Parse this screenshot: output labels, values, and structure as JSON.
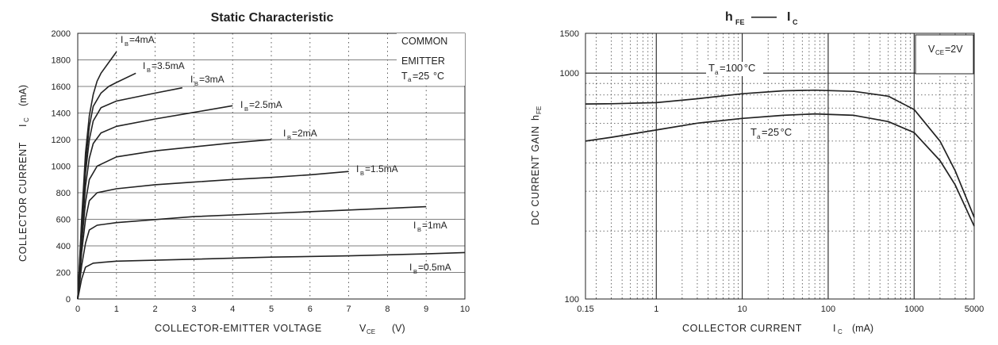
{
  "chart_data": [
    {
      "type": "line",
      "title": "Static Characteristic",
      "xlabel": "COLLECTOR-EMITTER VOLTAGE",
      "xlabel_symbol": "V",
      "xlabel_sub": "CE",
      "xlabel_unit": "(V)",
      "ylabel": "COLLECTOR CURRENT",
      "ylabel_symbol": "I",
      "ylabel_sub": "C",
      "ylabel_unit": "(mA)",
      "xlim": [
        0,
        10
      ],
      "ylim": [
        0,
        2000
      ],
      "xticks": [
        "0",
        "1",
        "2",
        "3",
        "4",
        "5",
        "6",
        "7",
        "8",
        "9",
        "10"
      ],
      "yticks": [
        "0",
        "200",
        "400",
        "600",
        "800",
        "1000",
        "1200",
        "1400",
        "1600",
        "1800",
        "2000"
      ],
      "grid": true,
      "annotations": [
        "COMMON",
        "EMITTER",
        "T",
        "a",
        "=25",
        "°C"
      ],
      "series": [
        {
          "name": "IB=0.5mA",
          "label_main": "I",
          "label_sub": "B",
          "label_rest": "=0.5mA",
          "x": [
            0,
            0.1,
            0.2,
            0.4,
            1,
            3,
            5,
            7,
            9,
            10
          ],
          "y": [
            0,
            150,
            240,
            270,
            285,
            300,
            315,
            325,
            340,
            350
          ]
        },
        {
          "name": "IB=1mA",
          "label_main": "I",
          "label_sub": "B",
          "label_rest": "=1mA",
          "x": [
            0,
            0.1,
            0.2,
            0.3,
            0.5,
            1,
            3,
            5,
            7,
            9
          ],
          "y": [
            0,
            250,
            420,
            520,
            555,
            575,
            620,
            645,
            670,
            695
          ]
        },
        {
          "name": "IB=1.5mA",
          "label_main": "I",
          "label_sub": "B",
          "label_rest": "=1.5mA",
          "x": [
            0,
            0.1,
            0.2,
            0.3,
            0.5,
            1,
            2,
            3,
            4,
            5,
            6,
            7
          ],
          "y": [
            0,
            350,
            600,
            740,
            800,
            830,
            860,
            880,
            900,
            915,
            935,
            960
          ]
        },
        {
          "name": "IB=2mA",
          "label_main": "I",
          "label_sub": "B",
          "label_rest": "=2mA",
          "x": [
            0,
            0.1,
            0.2,
            0.3,
            0.5,
            1,
            2,
            3,
            4,
            5
          ],
          "y": [
            0,
            420,
            730,
            900,
            1000,
            1070,
            1115,
            1145,
            1175,
            1200
          ]
        },
        {
          "name": "IB=2.5mA",
          "label_main": "I",
          "label_sub": "B",
          "label_rest": "=2.5mA",
          "x": [
            0,
            0.1,
            0.2,
            0.3,
            0.4,
            0.6,
            1,
            2,
            3,
            4
          ],
          "y": [
            0,
            480,
            850,
            1060,
            1170,
            1250,
            1300,
            1355,
            1405,
            1455
          ]
        },
        {
          "name": "IB=3mA",
          "label_main": "I",
          "label_sub": "B",
          "label_rest": "=3mA",
          "x": [
            0,
            0.1,
            0.2,
            0.3,
            0.4,
            0.6,
            1,
            1.5,
            2,
            2.7
          ],
          "y": [
            0,
            520,
            950,
            1200,
            1340,
            1440,
            1490,
            1520,
            1550,
            1590
          ]
        },
        {
          "name": "IB=3.5mA",
          "label_main": "I",
          "label_sub": "B",
          "label_rest": "=3.5mA",
          "x": [
            0,
            0.1,
            0.2,
            0.3,
            0.4,
            0.6,
            0.8,
            1,
            1.5
          ],
          "y": [
            0,
            560,
            1020,
            1300,
            1450,
            1550,
            1600,
            1630,
            1700
          ]
        },
        {
          "name": "IB=4mA",
          "label_main": "I",
          "label_sub": "B",
          "label_rest": "=4mA",
          "x": [
            0,
            0.1,
            0.2,
            0.3,
            0.4,
            0.5,
            0.6,
            0.8,
            1
          ],
          "y": [
            0,
            600,
            1100,
            1380,
            1540,
            1640,
            1700,
            1780,
            1860
          ]
        }
      ]
    },
    {
      "type": "line",
      "title": "h",
      "title_sub": "FE",
      "title_sep": "——",
      "title_b": "I",
      "title_b_sub": "C",
      "xlabel": "COLLECTOR CURRENT",
      "xlabel_symbol": "I",
      "xlabel_sub": "C",
      "xlabel_unit": "(mA)",
      "ylabel": "DC CURRENT GAIN",
      "ylabel_symbol": "h",
      "ylabel_sub": "FE",
      "xscale": "log",
      "yscale": "log",
      "xlim": [
        0.15,
        5000
      ],
      "ylim": [
        100,
        1500
      ],
      "xticks": [
        "0.15",
        "1",
        "10",
        "100",
        "1000",
        "5000"
      ],
      "yticks": [
        "100",
        "1000",
        "1500"
      ],
      "grid": true,
      "annotations": [
        "V",
        "CE",
        "=2V"
      ],
      "series": [
        {
          "name": "Ta=100°C",
          "label_main": "T",
          "label_sub": "a",
          "label_rest": "=100",
          "label_unit": "°C",
          "x": [
            0.15,
            0.3,
            1,
            3,
            10,
            30,
            70,
            200,
            500,
            1000,
            2000,
            3000,
            5000
          ],
          "y": [
            730,
            732,
            740,
            770,
            810,
            835,
            840,
            830,
            790,
            690,
            500,
            370,
            230
          ]
        },
        {
          "name": "Ta=25°C",
          "label_main": "T",
          "label_sub": "a",
          "label_rest": "=25",
          "label_unit": "°C",
          "x": [
            0.15,
            0.3,
            1,
            3,
            10,
            30,
            70,
            200,
            500,
            1000,
            2000,
            3000,
            5000
          ],
          "y": [
            500,
            520,
            560,
            600,
            630,
            650,
            660,
            650,
            610,
            545,
            410,
            320,
            210
          ]
        }
      ]
    }
  ]
}
